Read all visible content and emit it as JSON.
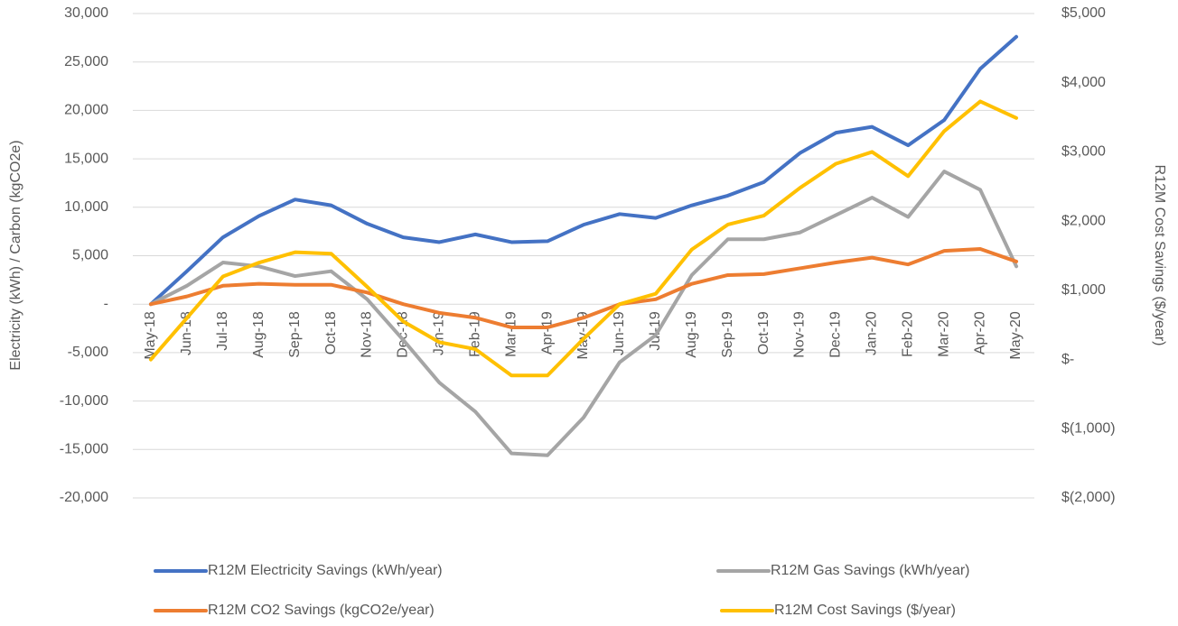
{
  "chart_data": {
    "type": "line",
    "y_label": "Electricity (kWh) / Carbon (kgCO2e)",
    "y2_label": "R12M Cost Savings ($/year)",
    "categories": [
      "May-18",
      "Jun-18",
      "Jul-18",
      "Aug-18",
      "Sep-18",
      "Oct-18",
      "Nov-18",
      "Dec-18",
      "Jan-19",
      "Feb-19",
      "Mar-19",
      "Apr-19",
      "May-19",
      "Jun-19",
      "Jul-19",
      "Aug-19",
      "Sep-19",
      "Oct-19",
      "Nov-19",
      "Dec-19",
      "Jan-20",
      "Feb-20",
      "Mar-20",
      "Apr-20",
      "May-20"
    ],
    "series": [
      {
        "name": "R12M Electricity Savings (kWh/year)",
        "color": "#4472c4",
        "values": [
          0,
          3400,
          6900,
          9100,
          10800,
          10200,
          8300,
          6900,
          6400,
          7200,
          6400,
          6500,
          8200,
          9300,
          8900,
          10200,
          11200,
          12600,
          15600,
          17700,
          18300,
          16400,
          19000,
          24300,
          27600
        ]
      },
      {
        "name": "R12M Gas Savings (kWh/year)",
        "color": "#a5a5a5",
        "values": [
          0,
          1900,
          4300,
          3900,
          2900,
          3400,
          500,
          -3700,
          -8100,
          -11100,
          -15400,
          -15600,
          -11700,
          -6000,
          -3200,
          3000,
          6700,
          6700,
          7400,
          9200,
          11000,
          9000,
          13700,
          11800,
          3900
        ]
      },
      {
        "name": "R12M CO2 Savings (kgCO2e/year)",
        "color": "#ed7d31",
        "values": [
          0,
          800,
          1900,
          2100,
          2000,
          2000,
          1200,
          0,
          -900,
          -1400,
          -2400,
          -2400,
          -1400,
          0,
          500,
          2100,
          3000,
          3100,
          3700,
          4300,
          4800,
          4100,
          5500,
          5700,
          4400
        ]
      },
      {
        "name": "R12M Cost Savings ($/year)",
        "color": "#ffc000",
        "axis": "y2",
        "values": [
          0,
          600,
          1200,
          1400,
          1550,
          1530,
          1050,
          550,
          250,
          150,
          -230,
          -230,
          300,
          800,
          950,
          1590,
          1950,
          2080,
          2480,
          2830,
          3000,
          2650,
          3300,
          3730,
          3490
        ]
      }
    ],
    "ylim": [
      -20000,
      30000
    ],
    "yticks": [
      {
        "value": -20000,
        "label": "-20,000"
      },
      {
        "value": -15000,
        "label": "-15,000"
      },
      {
        "value": -10000,
        "label": "-10,000"
      },
      {
        "value": -5000,
        "label": "-5,000"
      },
      {
        "value": 0,
        "label": "-"
      },
      {
        "value": 5000,
        "label": "5,000"
      },
      {
        "value": 10000,
        "label": "10,000"
      },
      {
        "value": 15000,
        "label": "15,000"
      },
      {
        "value": 20000,
        "label": "20,000"
      },
      {
        "value": 25000,
        "label": "25,000"
      },
      {
        "value": 30000,
        "label": "30,000"
      }
    ],
    "y2lim": [
      -2000,
      5000
    ],
    "y2ticks": [
      {
        "value": -2000,
        "label": "$(2,000)"
      },
      {
        "value": -1000,
        "label": "$(1,000)"
      },
      {
        "value": 0,
        "label": "$-"
      },
      {
        "value": 1000,
        "label": "$1,000"
      },
      {
        "value": 2000,
        "label": "$2,000"
      },
      {
        "value": 3000,
        "label": "$3,000"
      },
      {
        "value": 4000,
        "label": "$4,000"
      },
      {
        "value": 5000,
        "label": "$5,000"
      }
    ],
    "grid": true,
    "legend": "bottom"
  }
}
